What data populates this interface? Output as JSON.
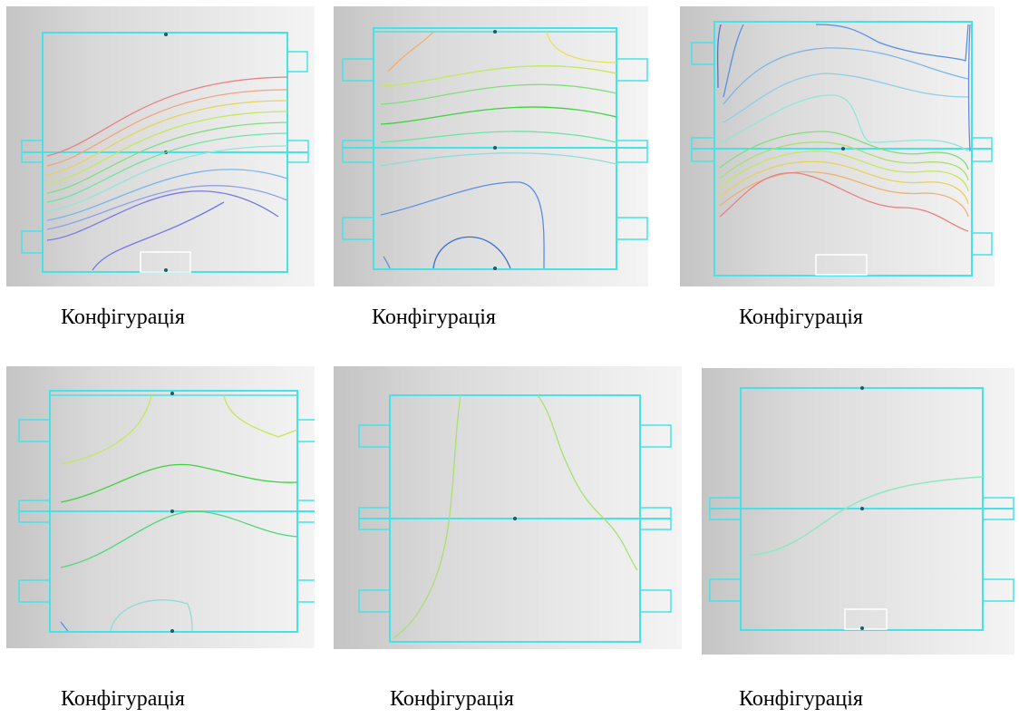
{
  "figures": [
    {
      "caption": "Конфігурація",
      "ring_ticks": true
    },
    {
      "caption": "Конфігурація",
      "ring_ticks": false
    },
    {
      "caption": "Конфігурація",
      "ring_ticks": true
    },
    {
      "caption": "Конфігурація",
      "ring_ticks": false
    },
    {
      "caption": "Конфігурація",
      "ring_ticks": false
    },
    {
      "caption": "Конфігурація",
      "ring_ticks": true
    }
  ],
  "colors": {
    "frame": "#44e3e8",
    "background_left": "#c4c4c4",
    "background_right": "#f4f4f4",
    "contour_scale": [
      "#7878e6",
      "#5a8fe0",
      "#7ab6ea",
      "#8fdcd6",
      "#7fe07a",
      "#3fd13f",
      "#c4e85a",
      "#e6e35a",
      "#f0b070",
      "#e88080",
      "#e05a5a"
    ]
  }
}
